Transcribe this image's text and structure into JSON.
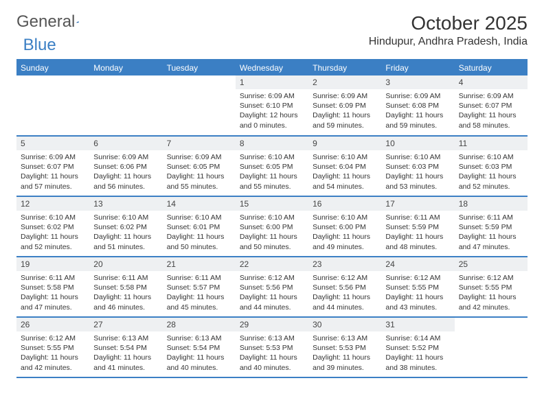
{
  "logo": {
    "text1": "General",
    "text2": "Blue"
  },
  "title": "October 2025",
  "location": "Hindupur, Andhra Pradesh, India",
  "colors": {
    "accent": "#3b7fc4",
    "daynum_bg": "#eef0f2",
    "text": "#333333",
    "bg": "#ffffff"
  },
  "day_headers": [
    "Sunday",
    "Monday",
    "Tuesday",
    "Wednesday",
    "Thursday",
    "Friday",
    "Saturday"
  ],
  "weeks": [
    [
      null,
      null,
      null,
      {
        "d": "1",
        "sr": "Sunrise: 6:09 AM",
        "ss": "Sunset: 6:10 PM",
        "dl1": "Daylight: 12 hours",
        "dl2": "and 0 minutes."
      },
      {
        "d": "2",
        "sr": "Sunrise: 6:09 AM",
        "ss": "Sunset: 6:09 PM",
        "dl1": "Daylight: 11 hours",
        "dl2": "and 59 minutes."
      },
      {
        "d": "3",
        "sr": "Sunrise: 6:09 AM",
        "ss": "Sunset: 6:08 PM",
        "dl1": "Daylight: 11 hours",
        "dl2": "and 59 minutes."
      },
      {
        "d": "4",
        "sr": "Sunrise: 6:09 AM",
        "ss": "Sunset: 6:07 PM",
        "dl1": "Daylight: 11 hours",
        "dl2": "and 58 minutes."
      }
    ],
    [
      {
        "d": "5",
        "sr": "Sunrise: 6:09 AM",
        "ss": "Sunset: 6:07 PM",
        "dl1": "Daylight: 11 hours",
        "dl2": "and 57 minutes."
      },
      {
        "d": "6",
        "sr": "Sunrise: 6:09 AM",
        "ss": "Sunset: 6:06 PM",
        "dl1": "Daylight: 11 hours",
        "dl2": "and 56 minutes."
      },
      {
        "d": "7",
        "sr": "Sunrise: 6:09 AM",
        "ss": "Sunset: 6:05 PM",
        "dl1": "Daylight: 11 hours",
        "dl2": "and 55 minutes."
      },
      {
        "d": "8",
        "sr": "Sunrise: 6:10 AM",
        "ss": "Sunset: 6:05 PM",
        "dl1": "Daylight: 11 hours",
        "dl2": "and 55 minutes."
      },
      {
        "d": "9",
        "sr": "Sunrise: 6:10 AM",
        "ss": "Sunset: 6:04 PM",
        "dl1": "Daylight: 11 hours",
        "dl2": "and 54 minutes."
      },
      {
        "d": "10",
        "sr": "Sunrise: 6:10 AM",
        "ss": "Sunset: 6:03 PM",
        "dl1": "Daylight: 11 hours",
        "dl2": "and 53 minutes."
      },
      {
        "d": "11",
        "sr": "Sunrise: 6:10 AM",
        "ss": "Sunset: 6:03 PM",
        "dl1": "Daylight: 11 hours",
        "dl2": "and 52 minutes."
      }
    ],
    [
      {
        "d": "12",
        "sr": "Sunrise: 6:10 AM",
        "ss": "Sunset: 6:02 PM",
        "dl1": "Daylight: 11 hours",
        "dl2": "and 52 minutes."
      },
      {
        "d": "13",
        "sr": "Sunrise: 6:10 AM",
        "ss": "Sunset: 6:02 PM",
        "dl1": "Daylight: 11 hours",
        "dl2": "and 51 minutes."
      },
      {
        "d": "14",
        "sr": "Sunrise: 6:10 AM",
        "ss": "Sunset: 6:01 PM",
        "dl1": "Daylight: 11 hours",
        "dl2": "and 50 minutes."
      },
      {
        "d": "15",
        "sr": "Sunrise: 6:10 AM",
        "ss": "Sunset: 6:00 PM",
        "dl1": "Daylight: 11 hours",
        "dl2": "and 50 minutes."
      },
      {
        "d": "16",
        "sr": "Sunrise: 6:10 AM",
        "ss": "Sunset: 6:00 PM",
        "dl1": "Daylight: 11 hours",
        "dl2": "and 49 minutes."
      },
      {
        "d": "17",
        "sr": "Sunrise: 6:11 AM",
        "ss": "Sunset: 5:59 PM",
        "dl1": "Daylight: 11 hours",
        "dl2": "and 48 minutes."
      },
      {
        "d": "18",
        "sr": "Sunrise: 6:11 AM",
        "ss": "Sunset: 5:59 PM",
        "dl1": "Daylight: 11 hours",
        "dl2": "and 47 minutes."
      }
    ],
    [
      {
        "d": "19",
        "sr": "Sunrise: 6:11 AM",
        "ss": "Sunset: 5:58 PM",
        "dl1": "Daylight: 11 hours",
        "dl2": "and 47 minutes."
      },
      {
        "d": "20",
        "sr": "Sunrise: 6:11 AM",
        "ss": "Sunset: 5:58 PM",
        "dl1": "Daylight: 11 hours",
        "dl2": "and 46 minutes."
      },
      {
        "d": "21",
        "sr": "Sunrise: 6:11 AM",
        "ss": "Sunset: 5:57 PM",
        "dl1": "Daylight: 11 hours",
        "dl2": "and 45 minutes."
      },
      {
        "d": "22",
        "sr": "Sunrise: 6:12 AM",
        "ss": "Sunset: 5:56 PM",
        "dl1": "Daylight: 11 hours",
        "dl2": "and 44 minutes."
      },
      {
        "d": "23",
        "sr": "Sunrise: 6:12 AM",
        "ss": "Sunset: 5:56 PM",
        "dl1": "Daylight: 11 hours",
        "dl2": "and 44 minutes."
      },
      {
        "d": "24",
        "sr": "Sunrise: 6:12 AM",
        "ss": "Sunset: 5:55 PM",
        "dl1": "Daylight: 11 hours",
        "dl2": "and 43 minutes."
      },
      {
        "d": "25",
        "sr": "Sunrise: 6:12 AM",
        "ss": "Sunset: 5:55 PM",
        "dl1": "Daylight: 11 hours",
        "dl2": "and 42 minutes."
      }
    ],
    [
      {
        "d": "26",
        "sr": "Sunrise: 6:12 AM",
        "ss": "Sunset: 5:55 PM",
        "dl1": "Daylight: 11 hours",
        "dl2": "and 42 minutes."
      },
      {
        "d": "27",
        "sr": "Sunrise: 6:13 AM",
        "ss": "Sunset: 5:54 PM",
        "dl1": "Daylight: 11 hours",
        "dl2": "and 41 minutes."
      },
      {
        "d": "28",
        "sr": "Sunrise: 6:13 AM",
        "ss": "Sunset: 5:54 PM",
        "dl1": "Daylight: 11 hours",
        "dl2": "and 40 minutes."
      },
      {
        "d": "29",
        "sr": "Sunrise: 6:13 AM",
        "ss": "Sunset: 5:53 PM",
        "dl1": "Daylight: 11 hours",
        "dl2": "and 40 minutes."
      },
      {
        "d": "30",
        "sr": "Sunrise: 6:13 AM",
        "ss": "Sunset: 5:53 PM",
        "dl1": "Daylight: 11 hours",
        "dl2": "and 39 minutes."
      },
      {
        "d": "31",
        "sr": "Sunrise: 6:14 AM",
        "ss": "Sunset: 5:52 PM",
        "dl1": "Daylight: 11 hours",
        "dl2": "and 38 minutes."
      },
      null
    ]
  ]
}
